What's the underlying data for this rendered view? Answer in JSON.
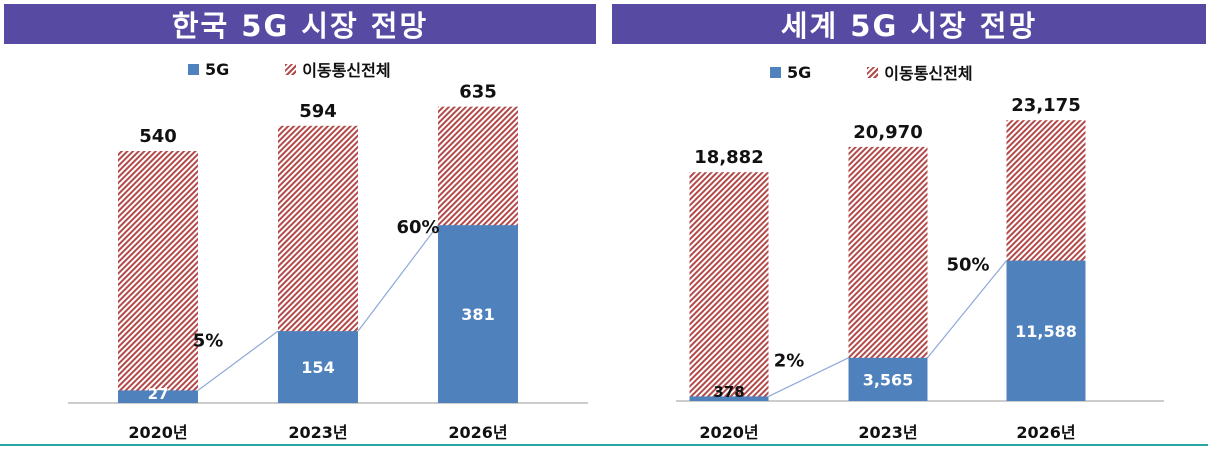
{
  "colors": {
    "banner": "#574aa3",
    "five_g": "#4f81bd",
    "hatch": "#b24a4a",
    "connector": "#8ea9d8",
    "rule": "#2aa6a0"
  },
  "chart_data": [
    {
      "type": "bar",
      "title": "한국 5G 시장 전망",
      "categories": [
        "2020년",
        "2023년",
        "2026년"
      ],
      "series": [
        {
          "name": "5G",
          "values": [
            27,
            154,
            381
          ],
          "labels": [
            "27",
            "154",
            "381"
          ]
        },
        {
          "name": "이동통신전체",
          "values": [
            540,
            594,
            635
          ],
          "labels": [
            "540",
            "594",
            "635"
          ]
        }
      ],
      "share_labels": [
        "5%",
        "",
        "60%"
      ],
      "ylim": [
        0,
        660
      ],
      "legend": "top"
    },
    {
      "type": "bar",
      "title": "세계 5G 시장 전망",
      "categories": [
        "2020년",
        "2023년",
        "2026년"
      ],
      "series": [
        {
          "name": "5G",
          "values": [
            378,
            3565,
            11588
          ],
          "labels": [
            "378",
            "3,565",
            "11,588"
          ]
        },
        {
          "name": "이동통신전체",
          "values": [
            18882,
            20970,
            23175
          ],
          "labels": [
            "18,882",
            "20,970",
            "23,175"
          ]
        }
      ],
      "share_labels": [
        "2%",
        "",
        "50%"
      ],
      "ylim": [
        0,
        25500
      ],
      "legend": "top"
    }
  ]
}
